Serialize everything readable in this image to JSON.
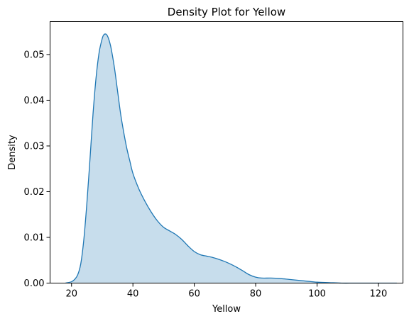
{
  "chart_data": {
    "type": "area",
    "title": "Density Plot for Yellow",
    "xlabel": "Yellow",
    "ylabel": "Density",
    "xlim": [
      13,
      128
    ],
    "ylim": [
      0,
      0.0572
    ],
    "xticks": [
      20,
      40,
      60,
      80,
      100,
      120
    ],
    "xtick_labels": [
      "20",
      "40",
      "60",
      "80",
      "100",
      "120"
    ],
    "yticks": [
      0.0,
      0.01,
      0.02,
      0.03,
      0.04,
      0.05
    ],
    "ytick_labels": [
      "0.00",
      "0.01",
      "0.02",
      "0.03",
      "0.04",
      "0.05"
    ],
    "grid": false,
    "colors": {
      "line": "#1f77b4",
      "fill": "#1f77b4",
      "fill_opacity": 0.25
    },
    "series": [
      {
        "x": [
          18,
          20,
          21,
          22,
          23,
          24,
          25,
          26,
          27,
          28,
          29,
          30,
          30.5,
          31,
          31.5,
          32,
          32.5,
          33,
          34,
          35,
          36,
          37,
          38,
          39,
          40,
          42,
          44,
          46,
          48,
          50,
          52,
          54,
          56,
          58,
          60,
          62,
          64,
          66,
          68,
          70,
          72,
          74,
          76,
          78,
          80,
          82,
          85,
          88,
          91,
          94,
          97,
          100,
          104,
          108,
          112,
          116,
          120,
          124,
          126
        ],
        "y": [
          0.0,
          0.0003,
          0.0008,
          0.0018,
          0.0042,
          0.0095,
          0.0175,
          0.027,
          0.037,
          0.045,
          0.0505,
          0.0535,
          0.0543,
          0.0545,
          0.0543,
          0.0536,
          0.0525,
          0.051,
          0.047,
          0.042,
          0.037,
          0.033,
          0.0295,
          0.0267,
          0.024,
          0.0205,
          0.0178,
          0.0155,
          0.0136,
          0.0122,
          0.0114,
          0.0106,
          0.0095,
          0.0081,
          0.0069,
          0.0062,
          0.0059,
          0.0056,
          0.0052,
          0.0047,
          0.0041,
          0.0034,
          0.0026,
          0.0018,
          0.0013,
          0.0011,
          0.0011,
          0.001,
          0.0008,
          0.0006,
          0.0004,
          0.0002,
          0.0001,
          0.0,
          0.0,
          0.0,
          0.0,
          0.0,
          0.0
        ]
      }
    ]
  }
}
